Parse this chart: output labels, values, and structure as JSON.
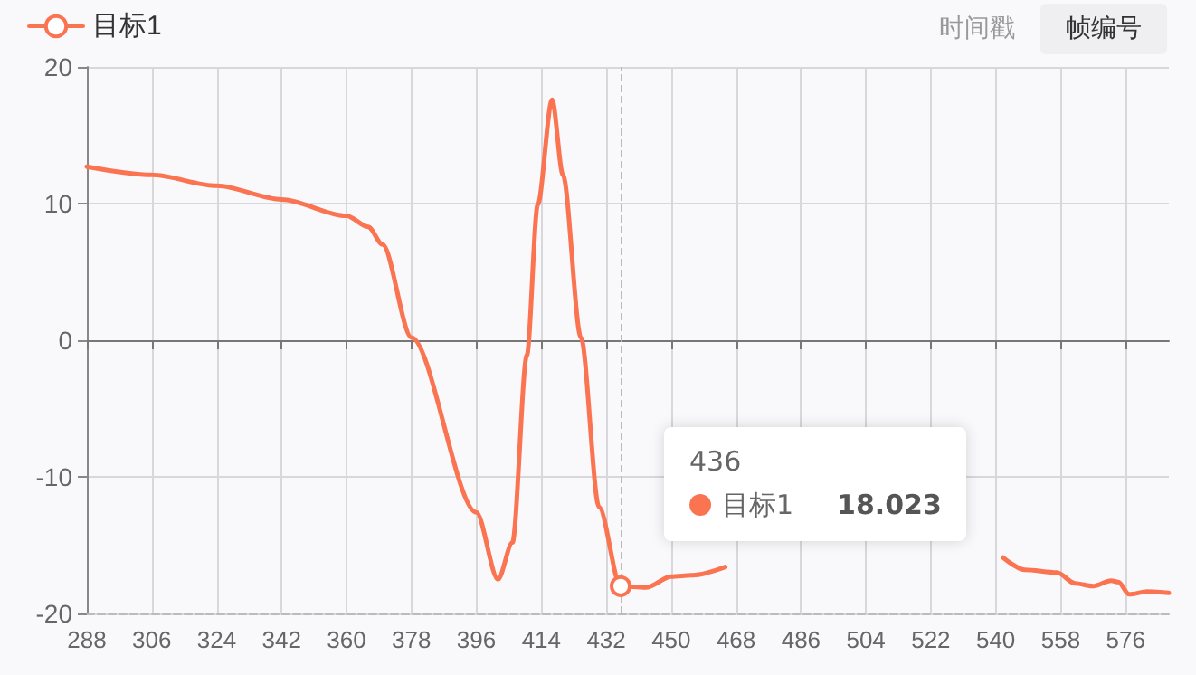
{
  "chart_data": {
    "type": "line",
    "x": [
      288,
      306,
      324,
      342,
      360,
      366,
      370,
      378,
      396,
      402,
      406,
      410,
      413,
      417,
      420,
      425,
      430,
      436,
      443,
      450,
      456,
      465,
      468,
      538,
      542,
      548,
      557,
      562,
      567,
      572,
      574,
      577,
      582,
      588
    ],
    "series": [
      {
        "name": "目标1",
        "color": "#fa7452",
        "values": [
          12.7,
          12.1,
          11.3,
          10.3,
          9.1,
          8.3,
          7.0,
          0.2,
          -12.6,
          -17.5,
          -14.8,
          -1.1,
          9.9,
          17.6,
          12.1,
          0.2,
          -12.2,
          -18.0,
          -18.1,
          -17.3,
          -17.2,
          -16.6,
          null,
          null,
          -15.9,
          -16.8,
          -17.0,
          -17.8,
          -18.0,
          -17.6,
          -17.7,
          -18.6,
          -18.4,
          -18.5
        ]
      }
    ],
    "xlim": [
      288,
      588
    ],
    "xticks": [
      288,
      306,
      324,
      342,
      360,
      378,
      396,
      414,
      432,
      450,
      468,
      486,
      504,
      522,
      540,
      558,
      576
    ],
    "ylim": [
      -20,
      20
    ],
    "yticks": [
      -20,
      -10,
      0,
      10,
      20
    ],
    "grid": true,
    "legend": "top left",
    "marker": "none",
    "ref_lines": [
      {
        "axis": "x",
        "value": 436,
        "line_style": "dashed",
        "color": "#bbbbbb"
      }
    ],
    "annotations": [
      "436",
      "目标1",
      "18.023",
      "时间戳",
      "帧编号"
    ]
  }
}
